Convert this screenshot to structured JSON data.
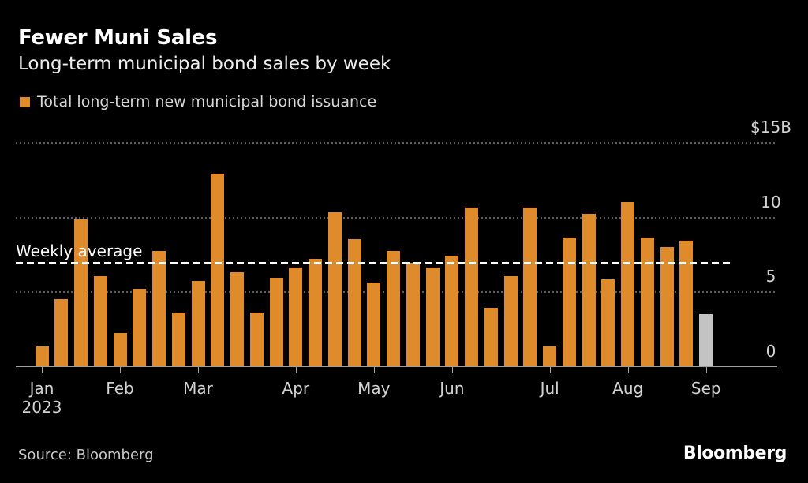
{
  "header": {
    "title": "Fewer Muni Sales",
    "subtitle": "Long-term municipal bond sales by week"
  },
  "legend": {
    "label": "Total long-term new municipal bond issuance",
    "swatch_color": "#df8a2b"
  },
  "chart_data": {
    "type": "bar",
    "title": "Fewer Muni Sales",
    "subtitle": "Long-term municipal bond sales by week",
    "series_name": "Total long-term new municipal bond issuance",
    "unit": "billion USD",
    "ylim": [
      0,
      15
    ],
    "grid": "dotted horizontal gridlines, black background",
    "legend_position": "top-left",
    "y_ticks": [
      {
        "label": "$15B",
        "value": 15
      },
      {
        "label": "10",
        "value": 10
      },
      {
        "label": "5",
        "value": 5
      },
      {
        "label": "0",
        "value": 0
      }
    ],
    "average_line": {
      "label": "Weekly average",
      "value": 6.9,
      "style": "white dashed"
    },
    "bars": [
      {
        "month": "Jan",
        "week_of_month": 1,
        "value": 1.3,
        "color": "orange"
      },
      {
        "month": "Jan",
        "week_of_month": 2,
        "value": 4.5,
        "color": "orange"
      },
      {
        "month": "Jan",
        "week_of_month": 3,
        "value": 9.8,
        "color": "orange"
      },
      {
        "month": "Jan",
        "week_of_month": 4,
        "value": 6.0,
        "color": "orange"
      },
      {
        "month": "Feb",
        "week_of_month": 1,
        "value": 2.2,
        "color": "orange"
      },
      {
        "month": "Feb",
        "week_of_month": 2,
        "value": 5.2,
        "color": "orange"
      },
      {
        "month": "Feb",
        "week_of_month": 3,
        "value": 7.7,
        "color": "orange"
      },
      {
        "month": "Feb",
        "week_of_month": 4,
        "value": 3.6,
        "color": "orange"
      },
      {
        "month": "Mar",
        "week_of_month": 1,
        "value": 5.7,
        "color": "orange"
      },
      {
        "month": "Mar",
        "week_of_month": 2,
        "value": 12.9,
        "color": "orange"
      },
      {
        "month": "Mar",
        "week_of_month": 3,
        "value": 6.3,
        "color": "orange"
      },
      {
        "month": "Mar",
        "week_of_month": 4,
        "value": 3.6,
        "color": "orange"
      },
      {
        "month": "Mar",
        "week_of_month": 5,
        "value": 5.9,
        "color": "orange"
      },
      {
        "month": "Apr",
        "week_of_month": 1,
        "value": 6.6,
        "color": "orange"
      },
      {
        "month": "Apr",
        "week_of_month": 2,
        "value": 7.2,
        "color": "orange"
      },
      {
        "month": "Apr",
        "week_of_month": 3,
        "value": 10.3,
        "color": "orange"
      },
      {
        "month": "Apr",
        "week_of_month": 4,
        "value": 8.5,
        "color": "orange"
      },
      {
        "month": "May",
        "week_of_month": 1,
        "value": 5.6,
        "color": "orange"
      },
      {
        "month": "May",
        "week_of_month": 2,
        "value": 7.7,
        "color": "orange"
      },
      {
        "month": "May",
        "week_of_month": 3,
        "value": 6.9,
        "color": "orange"
      },
      {
        "month": "May",
        "week_of_month": 4,
        "value": 6.6,
        "color": "orange"
      },
      {
        "month": "Jun",
        "week_of_month": 1,
        "value": 7.4,
        "color": "orange"
      },
      {
        "month": "Jun",
        "week_of_month": 2,
        "value": 10.6,
        "color": "orange"
      },
      {
        "month": "Jun",
        "week_of_month": 3,
        "value": 3.9,
        "color": "orange"
      },
      {
        "month": "Jun",
        "week_of_month": 4,
        "value": 6.0,
        "color": "orange"
      },
      {
        "month": "Jun",
        "week_of_month": 5,
        "value": 10.6,
        "color": "orange"
      },
      {
        "month": "Jul",
        "week_of_month": 1,
        "value": 1.3,
        "color": "orange"
      },
      {
        "month": "Jul",
        "week_of_month": 2,
        "value": 8.6,
        "color": "orange"
      },
      {
        "month": "Jul",
        "week_of_month": 3,
        "value": 10.2,
        "color": "orange"
      },
      {
        "month": "Jul",
        "week_of_month": 4,
        "value": 5.8,
        "color": "orange"
      },
      {
        "month": "Aug",
        "week_of_month": 1,
        "value": 11.0,
        "color": "orange"
      },
      {
        "month": "Aug",
        "week_of_month": 2,
        "value": 8.6,
        "color": "orange"
      },
      {
        "month": "Aug",
        "week_of_month": 3,
        "value": 8.0,
        "color": "orange"
      },
      {
        "month": "Aug",
        "week_of_month": 4,
        "value": 8.4,
        "color": "orange"
      },
      {
        "month": "Sep",
        "week_of_month": 1,
        "value": 3.5,
        "color": "gray"
      }
    ],
    "month_ticks": [
      {
        "label": "Jan",
        "sublabel": "2023",
        "bar_index": 0
      },
      {
        "label": "Feb",
        "sublabel": "",
        "bar_index": 4
      },
      {
        "label": "Mar",
        "sublabel": "",
        "bar_index": 8
      },
      {
        "label": "Apr",
        "sublabel": "",
        "bar_index": 13
      },
      {
        "label": "May",
        "sublabel": "",
        "bar_index": 17
      },
      {
        "label": "Jun",
        "sublabel": "",
        "bar_index": 21
      },
      {
        "label": "Jul",
        "sublabel": "",
        "bar_index": 26
      },
      {
        "label": "Aug",
        "sublabel": "",
        "bar_index": 30
      },
      {
        "label": "Sep",
        "sublabel": "",
        "bar_index": 34
      }
    ],
    "colors": {
      "orange": "#df8a2b",
      "gray": "#c3c3c3"
    }
  },
  "footer": {
    "source": "Source: Bloomberg",
    "logo": "Bloomberg"
  }
}
